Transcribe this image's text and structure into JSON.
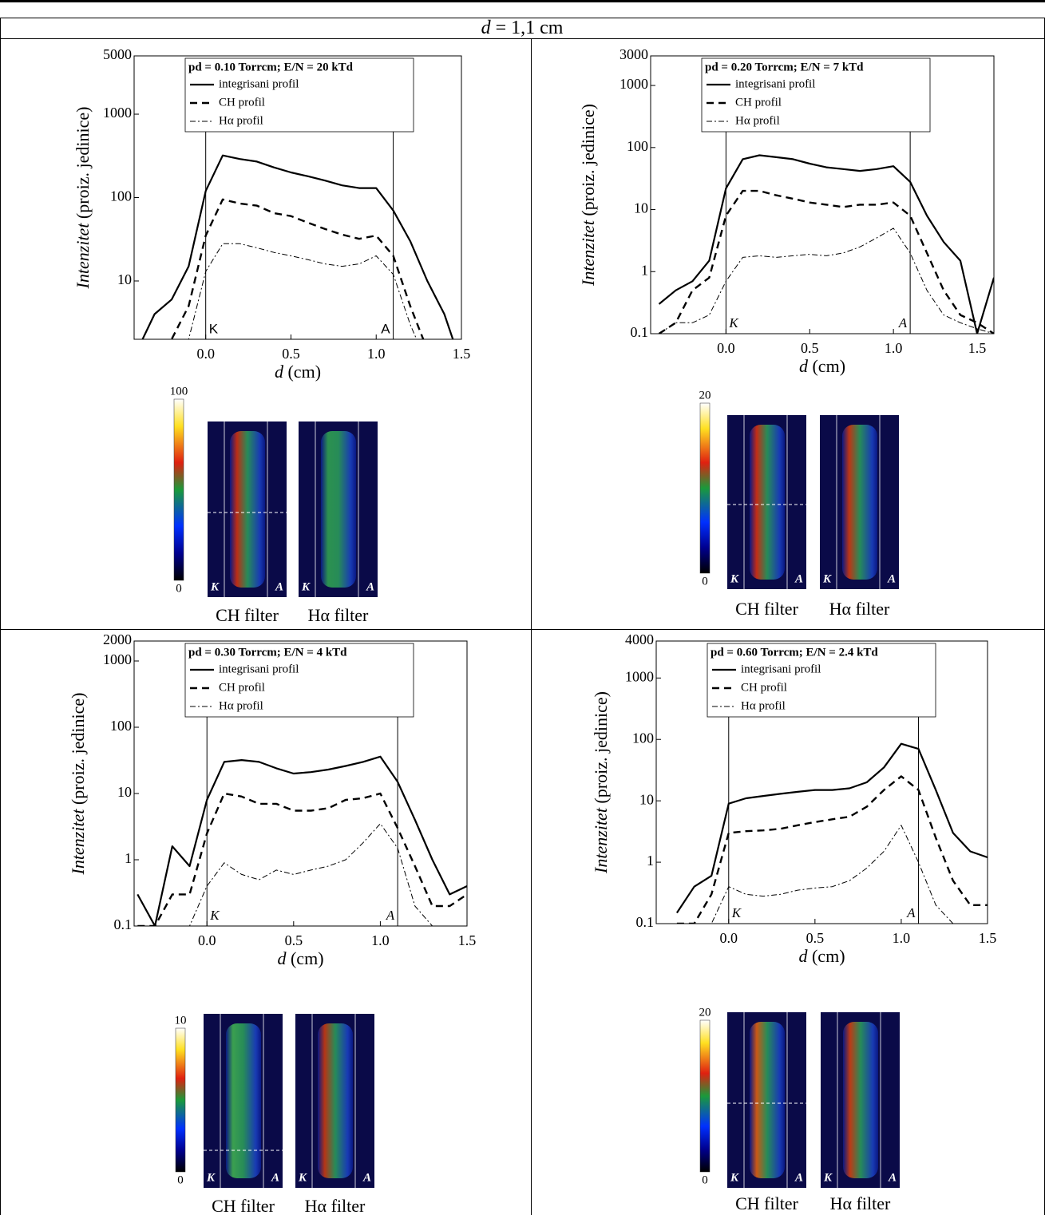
{
  "header": {
    "title_var": "d",
    "title_rest": "= 1,1 cm"
  },
  "chart_data": [
    {
      "type": "line",
      "title": "pd = 0.10 Torrcm; E/N = 20 kTd",
      "xlabel": {
        "var": "d",
        "unit": "(cm)"
      },
      "ylabel": {
        "var": "Intenzitet",
        "unit": "(proiz. jedinice)"
      },
      "log_scale": true,
      "xlim": [
        -0.42,
        1.5
      ],
      "ylim": [
        2,
        5000
      ],
      "xticks": [
        {
          "value": 0,
          "label": "0.0"
        },
        0.5,
        {
          "value": 1,
          "label": "1.0"
        },
        1.5
      ],
      "yticks": [
        10,
        100,
        1000,
        5000
      ],
      "electrodes": [
        0,
        1.1
      ],
      "electrode_labels": [
        "K",
        "A"
      ],
      "x": [
        -0.4,
        -0.3,
        -0.2,
        -0.1,
        0,
        0.1,
        0.2,
        0.3,
        0.4,
        0.5,
        0.6,
        0.7,
        0.8,
        0.9,
        1.0,
        1.1,
        1.2,
        1.3,
        1.4,
        1.5
      ],
      "series": [
        {
          "name": "integrisani profil",
          "color": "#000000",
          "style": "solid",
          "values": [
            1.5,
            4,
            6,
            15,
            120,
            320,
            290,
            270,
            230,
            200,
            180,
            160,
            140,
            130,
            130,
            70,
            30,
            10,
            4,
            1
          ]
        },
        {
          "name": "CH profil",
          "color": "#000000",
          "style": "dashed",
          "values": [
            1,
            1,
            2,
            5,
            35,
            95,
            85,
            80,
            65,
            60,
            50,
            42,
            36,
            32,
            35,
            20,
            5,
            1.5,
            1,
            1
          ]
        },
        {
          "name": "Hα profil",
          "color": "#000000",
          "style": "dashdot",
          "values": [
            1,
            1,
            1,
            2,
            13,
            28,
            28,
            25,
            22,
            20,
            18,
            16,
            15,
            16,
            20,
            12,
            3,
            1,
            1,
            1
          ]
        }
      ],
      "colorbar_range": [
        0,
        100
      ],
      "filters": [
        "CH filter",
        "Hα filter"
      ]
    },
    {
      "type": "line",
      "title": "pd = 0.20 Torrcm; E/N = 7 kTd",
      "xlabel": {
        "var": "d",
        "unit": "(cm)"
      },
      "ylabel": {
        "var": "Intenzitet",
        "unit": "(proiz. jedinice)"
      },
      "log_scale": true,
      "xlim": [
        -0.45,
        1.6
      ],
      "ylim": [
        0.1,
        3000
      ],
      "xticks": [
        {
          "value": 0,
          "label": "0.0"
        },
        0.5,
        {
          "value": 1,
          "label": "1.0"
        },
        1.5
      ],
      "yticks": [
        0.1,
        1,
        10,
        100,
        1000,
        3000
      ],
      "electrodes": [
        0,
        1.1
      ],
      "electrode_labels": [
        "K",
        "A"
      ],
      "x": [
        -0.4,
        -0.3,
        -0.2,
        -0.1,
        0,
        0.1,
        0.2,
        0.3,
        0.4,
        0.5,
        0.6,
        0.7,
        0.8,
        0.9,
        1.0,
        1.1,
        1.2,
        1.3,
        1.4,
        1.5,
        1.6
      ],
      "series": [
        {
          "name": "integrisani profil",
          "color": "#000000",
          "style": "solid",
          "values": [
            0.3,
            0.5,
            0.7,
            1.5,
            22,
            65,
            75,
            70,
            65,
            55,
            48,
            45,
            42,
            45,
            50,
            28,
            8,
            3,
            1.5,
            0.1,
            0.8
          ]
        },
        {
          "name": "CH profil",
          "color": "#000000",
          "style": "dashed",
          "values": [
            0.1,
            0.15,
            0.5,
            0.8,
            8,
            20,
            20,
            17,
            15,
            13,
            12,
            11,
            12,
            12,
            13,
            8,
            2,
            0.5,
            0.2,
            0.15,
            0.1
          ]
        },
        {
          "name": "Hα profil",
          "color": "#000000",
          "style": "dashdot",
          "values": [
            0.1,
            0.15,
            0.15,
            0.2,
            0.7,
            1.7,
            1.8,
            1.7,
            1.8,
            1.9,
            1.8,
            2,
            2.5,
            3.5,
            5,
            2,
            0.5,
            0.2,
            0.15,
            0.12,
            0.1
          ]
        }
      ],
      "colorbar_range": [
        0,
        20
      ],
      "filters": [
        "CH filter",
        "Hα filter"
      ]
    },
    {
      "type": "line",
      "title": "pd = 0.30 Torrcm; E/N = 4 kTd",
      "xlabel": {
        "var": "d",
        "unit": "(cm)"
      },
      "ylabel": {
        "var": "Intenzitet",
        "unit": "(proiz. jedinice)"
      },
      "log_scale": true,
      "xlim": [
        -0.42,
        1.5
      ],
      "ylim": [
        0.1,
        2000
      ],
      "xticks": [
        {
          "value": 0,
          "label": "0.0"
        },
        0.5,
        {
          "value": 1,
          "label": "1.0"
        },
        1.5
      ],
      "yticks": [
        0.1,
        1,
        10,
        100,
        1000,
        2000
      ],
      "electrodes": [
        0,
        1.1
      ],
      "electrode_labels": [
        "K",
        "A"
      ],
      "x": [
        -0.4,
        -0.3,
        -0.2,
        -0.1,
        0,
        0.1,
        0.2,
        0.3,
        0.4,
        0.5,
        0.6,
        0.7,
        0.8,
        0.9,
        1.0,
        1.1,
        1.2,
        1.3,
        1.4,
        1.5
      ],
      "series": [
        {
          "name": "integrisani profil",
          "color": "#000000",
          "style": "solid",
          "values": [
            0.3,
            0.1,
            1.6,
            0.8,
            8,
            30,
            32,
            30,
            24,
            20,
            21,
            23,
            26,
            30,
            36,
            15,
            4,
            1,
            0.3,
            0.4
          ]
        },
        {
          "name": "CH profil",
          "color": "#000000",
          "style": "dashed",
          "values": [
            0.1,
            0.1,
            0.3,
            0.3,
            2.5,
            10,
            9,
            7,
            7,
            5.5,
            5.5,
            6,
            8,
            8.5,
            10,
            3,
            0.8,
            0.2,
            0.2,
            0.3
          ]
        },
        {
          "name": "Hα profil",
          "color": "#000000",
          "style": "dashdot",
          "values": [
            0.1,
            0.1,
            0.1,
            0.1,
            0.4,
            0.9,
            0.6,
            0.5,
            0.7,
            0.6,
            0.7,
            0.8,
            1,
            1.8,
            3.5,
            1.5,
            0.2,
            0.1,
            0.1,
            0.1
          ]
        }
      ],
      "colorbar_range": [
        0,
        10
      ],
      "filters": [
        "CH filter",
        "Hα filter"
      ]
    },
    {
      "type": "line",
      "title": "pd = 0.60 Torrcm; E/N = 2.4 kTd",
      "xlabel": {
        "var": "d",
        "unit": "(cm)"
      },
      "ylabel": {
        "var": "Intenzitet",
        "unit": "(proiz. jedinice)"
      },
      "log_scale": true,
      "xlim": [
        -0.42,
        1.5
      ],
      "ylim": [
        0.1,
        4000
      ],
      "xticks": [
        {
          "value": 0,
          "label": "0.0"
        },
        0.5,
        {
          "value": 1,
          "label": "1.0"
        },
        1.5
      ],
      "yticks": [
        0.1,
        1,
        10,
        100,
        1000,
        4000
      ],
      "electrodes": [
        0,
        1.1
      ],
      "electrode_labels": [
        "K",
        "A"
      ],
      "x": [
        -0.3,
        -0.2,
        -0.1,
        0,
        0.1,
        0.2,
        0.3,
        0.4,
        0.5,
        0.6,
        0.7,
        0.8,
        0.9,
        1.0,
        1.1,
        1.2,
        1.3,
        1.4,
        1.5
      ],
      "series": [
        {
          "name": "integrisani profil",
          "color": "#000000",
          "style": "solid",
          "values": [
            0.15,
            0.4,
            0.6,
            9,
            11,
            12,
            13,
            14,
            15,
            15,
            16,
            20,
            35,
            85,
            70,
            15,
            3,
            1.5,
            1.2
          ]
        },
        {
          "name": "CH profil",
          "color": "#000000",
          "style": "dashed",
          "values": [
            0.1,
            0.1,
            0.3,
            3,
            3.2,
            3.3,
            3.5,
            4,
            4.5,
            5,
            5.5,
            8,
            15,
            25,
            15,
            2.5,
            0.5,
            0.2,
            0.2
          ]
        },
        {
          "name": "Hα profil",
          "color": "#000000",
          "style": "dashdot",
          "values": [
            0.1,
            0.1,
            0.1,
            0.4,
            0.3,
            0.28,
            0.3,
            0.35,
            0.38,
            0.4,
            0.5,
            0.8,
            1.5,
            4,
            1,
            0.2,
            0.1,
            0.1,
            0.1
          ]
        }
      ],
      "colorbar_range": [
        0,
        20
      ],
      "filters": [
        "CH filter",
        "Hα filter"
      ]
    }
  ]
}
